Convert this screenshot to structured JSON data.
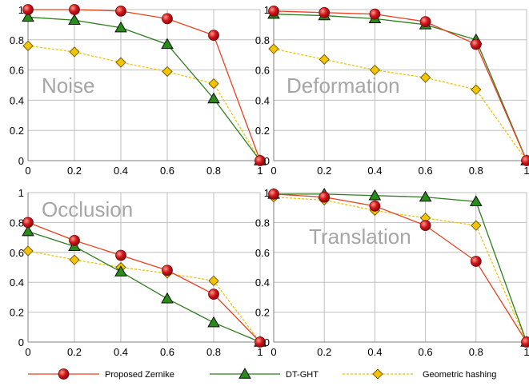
{
  "chart_data": [
    {
      "type": "line",
      "title": "Noise",
      "x": [
        0,
        0.2,
        0.4,
        0.6,
        0.8,
        1
      ],
      "xlim": [
        0,
        1
      ],
      "ylim": [
        0,
        1
      ],
      "xticks": [
        "0",
        "0.2",
        "0.4",
        "0.6",
        "0.8",
        "1"
      ],
      "yticks": [
        "0",
        "0.2",
        "0.4",
        "0.6",
        "0.8",
        "1"
      ],
      "grid": true,
      "series": [
        {
          "name": "Proposed Zernike",
          "values": [
            1.0,
            1.0,
            0.99,
            0.94,
            0.83,
            0.0
          ]
        },
        {
          "name": "DT-GHT",
          "values": [
            0.95,
            0.93,
            0.88,
            0.77,
            0.41,
            0.0
          ]
        },
        {
          "name": "Geometric hashing",
          "values": [
            0.76,
            0.72,
            0.65,
            0.59,
            0.51,
            0.0
          ]
        }
      ]
    },
    {
      "type": "line",
      "title": "Deformation",
      "x": [
        0,
        0.2,
        0.4,
        0.6,
        0.8,
        1
      ],
      "xlim": [
        0,
        1
      ],
      "ylim": [
        0,
        1
      ],
      "xticks": [
        "0",
        "0.2",
        "0.4",
        "0.6",
        "0.8",
        "1"
      ],
      "yticks": [
        "0",
        "0.2",
        "0.4",
        "0.6",
        "0.8",
        "1"
      ],
      "grid": true,
      "series": [
        {
          "name": "Proposed Zernike",
          "values": [
            0.99,
            0.98,
            0.97,
            0.92,
            0.77,
            0.0
          ]
        },
        {
          "name": "DT-GHT",
          "values": [
            0.97,
            0.96,
            0.94,
            0.9,
            0.8,
            0.0
          ]
        },
        {
          "name": "Geometric hashing",
          "values": [
            0.74,
            0.67,
            0.6,
            0.55,
            0.47,
            0.0
          ]
        }
      ]
    },
    {
      "type": "line",
      "title": "Occlusion",
      "x": [
        0,
        0.2,
        0.4,
        0.6,
        0.8,
        1
      ],
      "xlim": [
        0,
        1
      ],
      "ylim": [
        0,
        1
      ],
      "xticks": [
        "0",
        "0.2",
        "0.4",
        "0.6",
        "0.8",
        "1"
      ],
      "yticks": [
        "0",
        "0.2",
        "0.4",
        "0.6",
        "0.8",
        "1"
      ],
      "grid": true,
      "series": [
        {
          "name": "Proposed Zernike",
          "values": [
            0.8,
            0.68,
            0.58,
            0.48,
            0.32,
            0.0
          ]
        },
        {
          "name": "DT-GHT",
          "values": [
            0.74,
            0.64,
            0.47,
            0.29,
            0.13,
            0.0
          ]
        },
        {
          "name": "Geometric hashing",
          "values": [
            0.61,
            0.55,
            0.5,
            0.46,
            0.41,
            0.0
          ]
        }
      ]
    },
    {
      "type": "line",
      "title": "Translation",
      "x": [
        0,
        0.2,
        0.4,
        0.6,
        0.8,
        1
      ],
      "xlim": [
        0,
        1
      ],
      "ylim": [
        0,
        1
      ],
      "xticks": [
        "0",
        "0.2",
        "0.4",
        "0.6",
        "0.8",
        "1"
      ],
      "yticks": [
        "0",
        "0.2",
        "0.4",
        "0.6",
        "0.8",
        "1"
      ],
      "grid": true,
      "series": [
        {
          "name": "Proposed Zernike",
          "values": [
            0.99,
            0.97,
            0.91,
            0.78,
            0.54,
            0.0
          ]
        },
        {
          "name": "DT-GHT",
          "values": [
            0.99,
            0.99,
            0.98,
            0.97,
            0.94,
            0.0
          ]
        },
        {
          "name": "Geometric hashing",
          "values": [
            0.97,
            0.95,
            0.88,
            0.83,
            0.78,
            0.0
          ]
        }
      ]
    }
  ],
  "legend": {
    "position": "bottom",
    "items": [
      {
        "label": "Proposed Zernike",
        "color": "#e8411f",
        "marker": "circle",
        "marker_color": "#c0141a",
        "line": "solid"
      },
      {
        "label": "DT-GHT",
        "color": "#2e7d1f",
        "marker": "triangle",
        "marker_color": "#2a8a1a",
        "line": "solid"
      },
      {
        "label": "Geometric hashing",
        "color": "#f2c200",
        "marker": "diamond",
        "marker_color": "#f5c400",
        "line": "dashed"
      }
    ]
  },
  "colors": {
    "grid": "#bfbfbf",
    "axis": "#7f7f7f",
    "panel_label": "#a6a6a6"
  }
}
